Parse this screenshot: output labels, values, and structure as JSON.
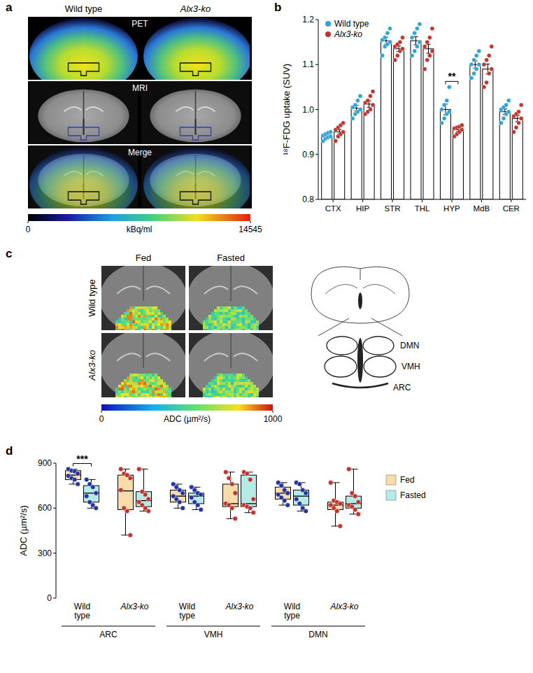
{
  "panel_a": {
    "letter": "a",
    "columns": [
      "Wild type",
      "Alx3-ko"
    ],
    "rows": [
      "PET",
      "MRI",
      "Merge"
    ],
    "colorbar": {
      "range": [
        0,
        14545
      ],
      "ticks": [
        0,
        14545
      ],
      "label": "kBq/ml"
    }
  },
  "chart_data": [
    {
      "panel": "b",
      "type": "bar",
      "ylabel": "¹⁸F-FDG uptake (SUV)",
      "categories": [
        "CTX",
        "HIP",
        "STR",
        "THL",
        "HYP",
        "MdB",
        "CER"
      ],
      "series": [
        {
          "name": "Wild type",
          "color": "#2ea3d5",
          "values": [
            0.94,
            1.003,
            1.153,
            1.153,
            1.0,
            1.1,
            0.995
          ],
          "errors": [
            0.003,
            0.006,
            0.008,
            0.009,
            0.012,
            0.008,
            0.006
          ],
          "points": [
            [
              0.93,
              0.935,
              0.938,
              0.94,
              0.942,
              0.945,
              0.948,
              0.95
            ],
            [
              0.98,
              0.99,
              0.995,
              1.0,
              1.005,
              1.01,
              1.02,
              1.03
            ],
            [
              1.12,
              1.14,
              1.145,
              1.15,
              1.155,
              1.16,
              1.17,
              1.18
            ],
            [
              1.12,
              1.13,
              1.14,
              1.15,
              1.16,
              1.17,
              1.18,
              1.19
            ],
            [
              0.97,
              0.98,
              0.99,
              0.995,
              1.0,
              1.01,
              1.02,
              1.05
            ],
            [
              1.07,
              1.08,
              1.09,
              1.1,
              1.1,
              1.11,
              1.12,
              1.13
            ],
            [
              0.97,
              0.98,
              0.99,
              0.995,
              1.0,
              1.005,
              1.01,
              1.02
            ]
          ]
        },
        {
          "name": "Alx3-ko",
          "color": "#c1332d",
          "values": [
            0.95,
            1.012,
            1.135,
            1.135,
            0.955,
            1.09,
            0.98
          ],
          "errors": [
            0.005,
            0.007,
            0.006,
            0.01,
            0.004,
            0.011,
            0.007
          ],
          "points": [
            [
              0.93,
              0.94,
              0.945,
              0.95,
              0.955,
              0.96,
              0.965,
              0.97
            ],
            [
              0.99,
              0.995,
              1.0,
              1.01,
              1.015,
              1.02,
              1.03,
              1.04
            ],
            [
              1.11,
              1.12,
              1.13,
              1.135,
              1.14,
              1.145,
              1.15,
              1.16
            ],
            [
              1.09,
              1.11,
              1.12,
              1.13,
              1.14,
              1.15,
              1.16,
              1.18
            ],
            [
              0.94,
              0.945,
              0.95,
              0.955,
              0.958,
              0.96,
              0.962,
              0.965
            ],
            [
              1.05,
              1.06,
              1.08,
              1.09,
              1.1,
              1.11,
              1.12,
              1.14
            ],
            [
              0.95,
              0.96,
              0.97,
              0.98,
              0.985,
              0.99,
              0.995,
              1.01
            ]
          ]
        }
      ],
      "ylim": [
        0.8,
        1.2
      ],
      "yticks": [
        0.8,
        0.9,
        {
          "value": 1,
          "label": "1.0"
        },
        1.1,
        1.2
      ],
      "legend": "top-left",
      "annotations": [
        {
          "text": "**",
          "category": "HYP"
        }
      ]
    },
    {
      "panel": "d",
      "type": "box",
      "ylabel": "ADC (µm²/s)",
      "groups": [
        "ARC",
        "VMH",
        "DMN"
      ],
      "categories": [
        "Wild type",
        "Alx3-ko"
      ],
      "series": [
        {
          "name": "Fed",
          "color": "#f8dcaa",
          "values": [
            {
              "min": 760,
              "q1": 790,
              "median": 820,
              "q3": 850,
              "max": 860,
              "points": [
                860,
                850,
                845,
                830,
                815,
                800,
                790,
                760
              ]
            },
            {
              "min": 420,
              "q1": 590,
              "median": 715,
              "q3": 820,
              "max": 860,
              "points": [
                860,
                830,
                820,
                800,
                720,
                600,
                580,
                420
              ]
            },
            {
              "min": 600,
              "q1": 640,
              "median": 680,
              "q3": 720,
              "max": 760,
              "points": [
                760,
                740,
                720,
                700,
                680,
                660,
                640,
                600
              ]
            },
            {
              "min": 530,
              "q1": 610,
              "median": 630,
              "q3": 760,
              "max": 840,
              "points": [
                840,
                800,
                760,
                700,
                630,
                620,
                600,
                530
              ]
            },
            {
              "min": 620,
              "q1": 660,
              "median": 700,
              "q3": 740,
              "max": 770,
              "points": [
                770,
                750,
                720,
                700,
                690,
                670,
                650,
                620
              ]
            },
            {
              "min": 480,
              "q1": 590,
              "median": 620,
              "q3": 640,
              "max": 770,
              "points": [
                770,
                650,
                640,
                630,
                620,
                600,
                580,
                480
              ]
            }
          ]
        },
        {
          "name": "Fasted",
          "color": "#b5ebe6",
          "values": [
            {
              "min": 600,
              "q1": 640,
              "median": 700,
              "q3": 750,
              "max": 790,
              "points": [
                790,
                760,
                740,
                700,
                680,
                640,
                620,
                600
              ]
            },
            {
              "min": 580,
              "q1": 610,
              "median": 650,
              "q3": 710,
              "max": 860,
              "points": [
                860,
                710,
                690,
                660,
                640,
                620,
                600,
                580
              ]
            },
            {
              "min": 590,
              "q1": 630,
              "median": 680,
              "q3": 700,
              "max": 740,
              "points": [
                740,
                720,
                700,
                690,
                670,
                640,
                620,
                590
              ]
            },
            {
              "min": 570,
              "q1": 610,
              "median": 630,
              "q3": 820,
              "max": 840,
              "points": [
                840,
                830,
                790,
                660,
                620,
                610,
                600,
                570
              ]
            },
            {
              "min": 580,
              "q1": 620,
              "median": 680,
              "q3": 720,
              "max": 770,
              "points": [
                770,
                760,
                720,
                700,
                660,
                630,
                600,
                580
              ]
            },
            {
              "min": 560,
              "q1": 600,
              "median": 630,
              "q3": 680,
              "max": 860,
              "points": [
                860,
                700,
                680,
                640,
                620,
                610,
                590,
                560
              ]
            }
          ]
        }
      ],
      "ylim": [
        0,
        900
      ],
      "yticks": [
        0,
        300,
        600,
        900
      ],
      "legend": "right",
      "annotations": [
        {
          "text": "***",
          "group": "ARC",
          "category": "Wild type"
        }
      ]
    }
  ],
  "panel_c": {
    "letter": "c",
    "columns": [
      "Fed",
      "Fasted"
    ],
    "rows": [
      "Wild type",
      "Alx3-ko"
    ],
    "colorbar": {
      "range": [
        0,
        1000
      ],
      "ticks": [
        0,
        1000
      ],
      "label": "ADC (µm²/s)"
    },
    "regions": [
      "DMN",
      "VMH",
      "ARC"
    ]
  }
}
